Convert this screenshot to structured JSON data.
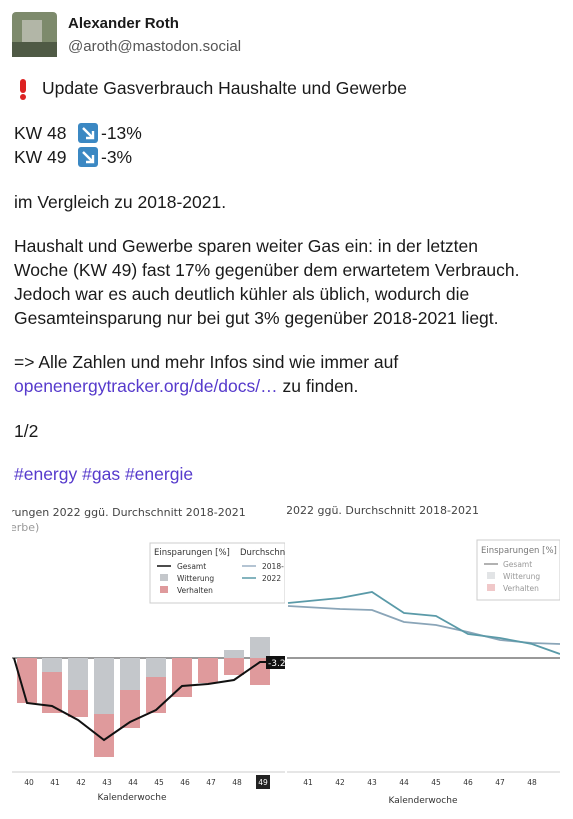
{
  "post": {
    "author": {
      "name": "Alexander Roth",
      "handle": "@aroth@mastodon.social"
    },
    "headline": "Update Gasverbrauch Haushalte und Gewerbe",
    "weekly": [
      {
        "week": "KW 48",
        "change": "-13%"
      },
      {
        "week": "KW 49",
        "change": "-3%"
      }
    ],
    "comparison": "im Vergleich zu 2018-2021.",
    "paragraph": [
      "Haushalt und Gewerbe sparen weiter Gas ein: in der letzten",
      "Woche (KW 49) fast 17% gegenüber dem erwartetem Verbrauch.",
      "Jedoch war es auch deutlich kühler als üblich, wodurch die",
      "Gesamteinsparung nur bei gut 3% gegenüber 2018-2021 liegt."
    ],
    "info": {
      "text": "=> Alle Zahlen und mehr Infos sind wie immer auf",
      "link": "openenergytracker.org/de/docs/…",
      "suffix": "zu finden."
    },
    "counter": "1/2",
    "hashtags": [
      "#energy",
      "#gas",
      "#energie"
    ]
  },
  "images": [
    {
      "title": "rungen 2022 ggü. Durchschnitt 2018-2021",
      "subtitle": "erbe)",
      "legend_title": "Einsparungen [%]",
      "legend_title_2": "Durchschn",
      "legend": [
        "Gesamt",
        "Witterung",
        "Verhalten"
      ],
      "legend_2": [
        "2018-",
        "2022"
      ],
      "flag": "-3.2",
      "xticks": [
        "40",
        "41",
        "42",
        "43",
        "44",
        "45",
        "46",
        "47",
        "48",
        "49"
      ],
      "xlabel": "Kalenderwoche"
    },
    {
      "title": "2022 ggü. Durchschnitt 2018-2021",
      "legend_title": "Einsparungen [%]",
      "legend": [
        "Gesamt",
        "Witterung",
        "Verhalten"
      ],
      "xticks": [
        "41",
        "42",
        "43",
        "44",
        "45",
        "46",
        "47",
        "48"
      ],
      "xlabel": "Kalenderwoche"
    }
  ]
}
